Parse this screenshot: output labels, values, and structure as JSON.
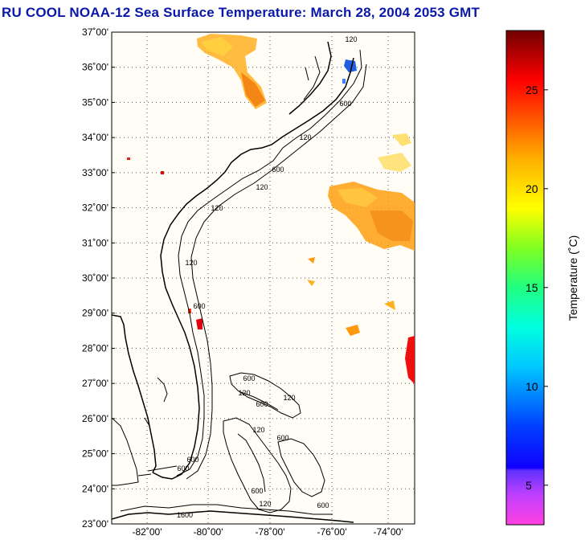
{
  "title": "RU COOL  NOAA-12  Sea Surface Temperature:  March 28, 2004 2053 GMT",
  "map": {
    "lat_ticks": [
      "37˚00'",
      "36˚00'",
      "35˚00'",
      "34˚00'",
      "33˚00'",
      "32˚00'",
      "31˚00'",
      "30˚00'",
      "29˚00'",
      "28˚00'",
      "27˚00'",
      "26˚00'",
      "25˚00'",
      "24˚00'",
      "23˚00'"
    ],
    "lon_ticks": [
      "-82˚00'",
      "-80˚00'",
      "-78˚00'",
      "-76˚00'",
      "-74˚00'"
    ],
    "contour_labels": [
      "120",
      "600",
      "120",
      "600",
      "120",
      "120",
      "600",
      "120",
      "600",
      "600",
      "600",
      "120",
      "600",
      "120",
      "120",
      "600",
      "600",
      "120",
      "600",
      "1600"
    ],
    "land_color": "#ffffff",
    "ocean_color": "#fffdf6"
  },
  "colorbar": {
    "label": "Temperature (˚C)",
    "ticks": [
      "25",
      "20",
      "15",
      "10",
      "5"
    ],
    "min": 3,
    "max": 28
  }
}
